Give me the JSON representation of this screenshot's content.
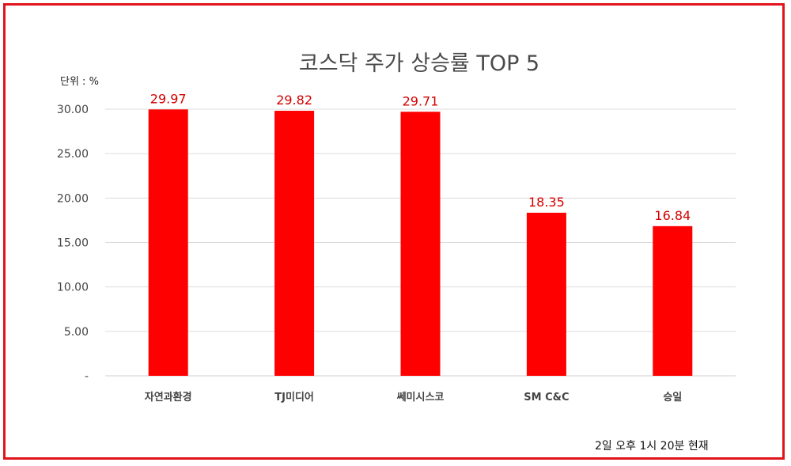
{
  "chart_data": {
    "type": "bar",
    "title": "코스닥 주가 상승률 TOP 5",
    "unit_label": "단위 : %",
    "footnote": "2일 오후 1시 20분 현재",
    "categories": [
      "자연과환경",
      "TJ미디어",
      "쎄미시스코",
      "SM C&C",
      "승일"
    ],
    "values": [
      29.97,
      29.82,
      29.71,
      18.35,
      16.84
    ],
    "data_labels": [
      "29.97",
      "29.82",
      "29.71",
      "18.35",
      "16.84"
    ],
    "ylim": [
      0,
      30
    ],
    "yticks": [
      0,
      5,
      10,
      15,
      20,
      25,
      30
    ],
    "ytick_labels": [
      "-",
      "5.00",
      "10.00",
      "15.00",
      "20.00",
      "25.00",
      "30.00"
    ],
    "grid": true,
    "bar_color": "#ff0000",
    "label_color": "#d40000",
    "frame_color": "#e0141a"
  }
}
